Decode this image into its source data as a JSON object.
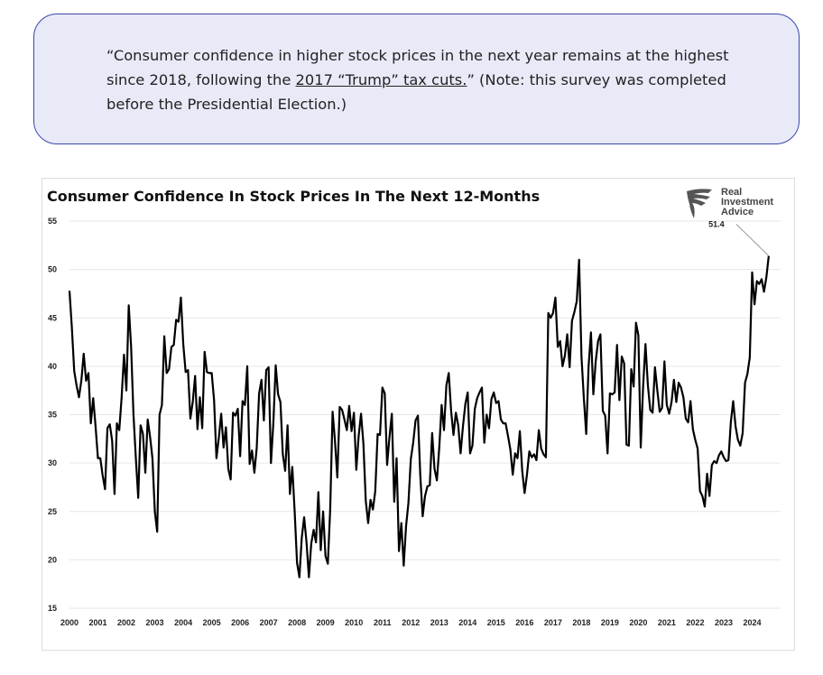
{
  "quote": {
    "part1": "“Consumer confidence in higher stock prices in the next year remains at the highest since 2018, following the ",
    "link_text": "2017 “Trump” tax cuts.",
    "part2": "” (Note: this survey was completed before the Presidential Election.)"
  },
  "brand": {
    "line1": "Real",
    "line2": "Investment",
    "line3": "Advice",
    "icon": "eagle-logo-icon"
  },
  "colors": {
    "quote_bg": "#e8eaf8",
    "quote_border": "#3a48a8",
    "line": "#000000",
    "grid": "#e6e6e6"
  },
  "chart_data": {
    "type": "line",
    "title": "Consumer Confidence In Stock Prices In The Next 12-Months",
    "xlabel": "",
    "ylabel": "",
    "ylim": [
      15,
      55
    ],
    "y_ticks": [
      15,
      20,
      25,
      30,
      35,
      40,
      45,
      50,
      55
    ],
    "x_ticks": [
      "2000",
      "2001",
      "2002",
      "2003",
      "2004",
      "2005",
      "2006",
      "2007",
      "2008",
      "2009",
      "2010",
      "2011",
      "2012",
      "2013",
      "2014",
      "2015",
      "2016",
      "2017",
      "2018",
      "2019",
      "2020",
      "2021",
      "2022",
      "2023",
      "2024"
    ],
    "grid": "horizontal",
    "x_start": 2000.0,
    "x_step": 0.0833333,
    "annotation": {
      "label": "51.4",
      "value": 51.4
    },
    "series": [
      {
        "values": [
          47.8,
          44,
          39.5,
          38,
          36.8,
          38.5,
          41.3,
          38.5,
          39.3,
          34.1,
          36.7,
          33.8,
          30.5,
          30.5,
          28.7,
          27.3,
          33.6,
          34,
          32.3,
          26.8,
          34.1,
          33.4,
          36.8,
          41.2,
          37.5,
          46.3,
          42,
          35,
          30.5,
          26.4,
          33.9,
          33,
          29,
          34.5,
          32.7,
          30.5,
          25,
          22.9,
          35,
          36,
          43.1,
          39.3,
          39.7,
          42,
          42.2,
          44.8,
          44.6,
          47.1,
          42.3,
          39.4,
          39.6,
          34.6,
          36.3,
          39,
          33.5,
          36.8,
          33.6,
          41.5,
          39.4,
          39.3,
          39.3,
          36.5,
          30.5,
          32.6,
          35.1,
          31.6,
          33.7,
          29.4,
          28.3,
          35.2,
          34.9,
          35.6,
          30.7,
          36.4,
          36,
          40,
          29.9,
          31.3,
          29,
          31.6,
          37.2,
          38.6,
          34.4,
          39.6,
          39.9,
          30,
          34.1,
          40.1,
          37.1,
          36.3,
          30.9,
          29.2,
          33.9,
          26.8,
          29.6,
          25,
          19.7,
          18.2,
          22.3,
          24.4,
          21.8,
          18.2,
          21.7,
          23.1,
          21.8,
          27,
          21,
          25,
          20.4,
          19.6,
          25.3,
          35.3,
          32.3,
          28.5,
          35.8,
          35.5,
          34.5,
          33.4,
          35.9,
          33.3,
          35.2,
          29.3,
          32.8,
          35.1,
          32,
          26.1,
          23.8,
          26.2,
          25.2,
          27.1,
          33,
          32.9,
          37.8,
          37.2,
          29.8,
          32.7,
          35.1,
          26,
          30.5,
          20.9,
          23.8,
          19.4,
          23.5,
          25.9,
          30.4,
          32.1,
          34.4,
          34.9,
          28.7,
          24.5,
          26.6,
          27.6,
          27.7,
          33.1,
          29.4,
          28.2,
          31.6,
          36,
          33.4,
          38,
          39.3,
          35.4,
          32.9,
          35.2,
          33.9,
          31,
          33.8,
          36.1,
          37.3,
          31,
          31.8,
          35.6,
          36.7,
          37.3,
          37.8,
          32.1,
          35,
          33.6,
          36.6,
          37.3,
          36.2,
          36.4,
          34.5,
          34.1,
          34.1,
          32.8,
          31.4,
          28.8,
          31,
          30.5,
          33.3,
          29.2,
          26.9,
          28.8,
          31.2,
          30.6,
          30.9,
          30.3,
          33.4,
          31.5,
          30.9,
          30.6,
          45.5,
          45,
          45.5,
          47.1,
          42,
          42.6,
          40,
          41.1,
          43.3,
          39.9,
          44.7,
          45.6,
          46.7,
          51,
          41,
          36.7,
          33,
          40,
          43.5,
          37.1,
          40.5,
          42.6,
          43.3,
          35.4,
          34.9,
          31,
          37.2,
          37.1,
          37.3,
          42.2,
          36.5,
          41,
          40.3,
          31.9,
          31.8,
          39.7,
          37.9,
          44.5,
          43.2,
          31.6,
          37.9,
          42.3,
          38.1,
          35.5,
          35.2,
          39.9,
          37.5,
          35.3,
          35.7,
          40.5,
          36,
          35.1,
          36.3,
          38.6,
          36.3,
          38.3,
          37.8,
          36.8,
          34.6,
          34.2,
          36.4,
          33.5,
          32.4,
          31.5,
          27.1,
          26.6,
          25.5,
          28.9,
          26.6,
          29.8,
          30.2,
          30,
          30.8,
          31.2,
          30.6,
          30.2,
          30.3,
          34.2,
          36.4,
          33.8,
          32.4,
          31.8,
          33.1,
          38.3,
          39.2,
          40.9,
          49.7,
          46.4,
          48.8,
          48.5,
          49,
          47.7,
          49.2,
          51.4
        ]
      }
    ]
  }
}
